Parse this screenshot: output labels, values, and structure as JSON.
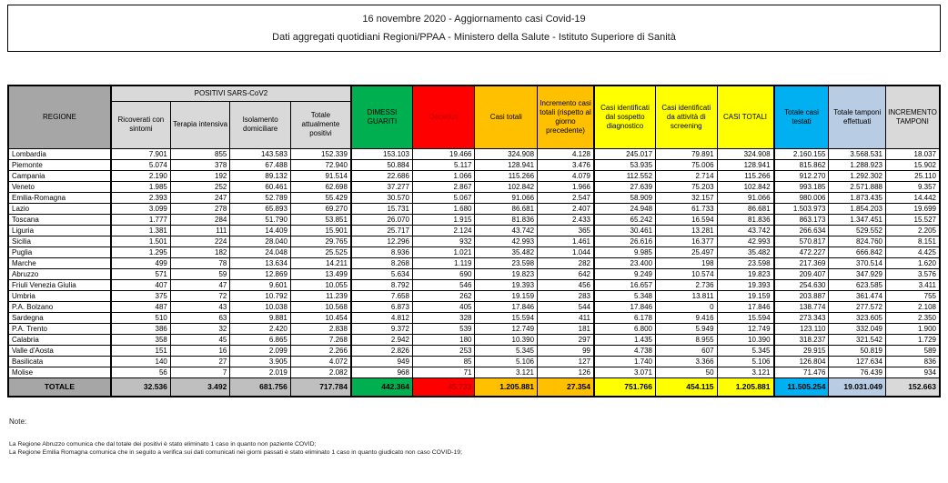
{
  "chart_data": {
    "type": "table",
    "title": "16 novembre 2020 - Aggiornamento casi Covid-19",
    "subtitle": "Dati aggregati quotidiani Regioni/PPAA - Ministero della Salute - Istituto Superiore di Sanità",
    "group_header": "POSITIVI SARS-CoV2",
    "columns": [
      "REGIONE",
      "Ricoverati con sintomi",
      "Terapia intensiva",
      "Isolamento domiciliare",
      "Totale attualmente positivi",
      "DIMESSI GUARITI",
      "Deceduti",
      "Casi totali",
      "Incremento casi totali (rispetto al giorno precedente)",
      "Casi identificati dal sospetto diagnostico",
      "Casi identificati da attività di screening",
      "CASI TOTALI",
      "Totale casi testati",
      "Totale tamponi effettuati",
      "INCREMENTO TAMPONI"
    ],
    "rows": [
      [
        "Lombardia",
        "7.901",
        "855",
        "143.583",
        "152.339",
        "153.103",
        "19.466",
        "324.908",
        "4.128",
        "245.017",
        "79.891",
        "324.908",
        "2.160.155",
        "3.568.531",
        "18.037"
      ],
      [
        "Piemonte",
        "5.074",
        "378",
        "67.488",
        "72.940",
        "50.884",
        "5.117",
        "128.941",
        "3.476",
        "53.935",
        "75.006",
        "128.941",
        "815.862",
        "1.288.923",
        "15.902"
      ],
      [
        "Campania",
        "2.190",
        "192",
        "89.132",
        "91.514",
        "22.686",
        "1.066",
        "115.266",
        "4.079",
        "112.552",
        "2.714",
        "115.266",
        "912.270",
        "1.292.302",
        "25.110"
      ],
      [
        "Veneto",
        "1.985",
        "252",
        "60.461",
        "62.698",
        "37.277",
        "2.867",
        "102.842",
        "1.966",
        "27.639",
        "75.203",
        "102.842",
        "993.185",
        "2.571.888",
        "9.357"
      ],
      [
        "Emilia-Romagna",
        "2.393",
        "247",
        "52.789",
        "55.429",
        "30.570",
        "5.067",
        "91.066",
        "2.547",
        "58.909",
        "32.157",
        "91.066",
        "980.006",
        "1.873.435",
        "14.442"
      ],
      [
        "Lazio",
        "3.099",
        "278",
        "65.893",
        "69.270",
        "15.731",
        "1.680",
        "86.681",
        "2.407",
        "24.948",
        "61.733",
        "86.681",
        "1.503.973",
        "1.854.203",
        "19.699"
      ],
      [
        "Toscana",
        "1.777",
        "284",
        "51.790",
        "53.851",
        "26.070",
        "1.915",
        "81.836",
        "2.433",
        "65.242",
        "16.594",
        "81.836",
        "863.173",
        "1.347.451",
        "15.527"
      ],
      [
        "Liguria",
        "1.381",
        "111",
        "14.409",
        "15.901",
        "25.717",
        "2.124",
        "43.742",
        "365",
        "30.461",
        "13.281",
        "43.742",
        "266.634",
        "529.552",
        "2.205"
      ],
      [
        "Sicilia",
        "1.501",
        "224",
        "28.040",
        "29.765",
        "12.296",
        "932",
        "42.993",
        "1.461",
        "26.616",
        "16.377",
        "42.993",
        "570.817",
        "824.760",
        "8.151"
      ],
      [
        "Puglia",
        "1.295",
        "182",
        "24.048",
        "25.525",
        "8.936",
        "1.021",
        "35.482",
        "1.044",
        "9.985",
        "25.497",
        "35.482",
        "472.227",
        "666.842",
        "4.425"
      ],
      [
        "Marche",
        "499",
        "78",
        "13.634",
        "14.211",
        "8.268",
        "1.119",
        "23.598",
        "282",
        "23.400",
        "198",
        "23.598",
        "217.369",
        "370.514",
        "1.620"
      ],
      [
        "Abruzzo",
        "571",
        "59",
        "12.869",
        "13.499",
        "5.634",
        "690",
        "19.823",
        "642",
        "9.249",
        "10.574",
        "19.823",
        "209.407",
        "347.929",
        "3.576"
      ],
      [
        "Friuli Venezia Giulia",
        "407",
        "47",
        "9.601",
        "10.055",
        "8.792",
        "546",
        "19.393",
        "456",
        "16.657",
        "2.736",
        "19.393",
        "254.630",
        "623.585",
        "3.411"
      ],
      [
        "Umbria",
        "375",
        "72",
        "10.792",
        "11.239",
        "7.658",
        "262",
        "19.159",
        "283",
        "5.348",
        "13.811",
        "19.159",
        "203.887",
        "361.474",
        "755"
      ],
      [
        "P.A. Bolzano",
        "487",
        "43",
        "10.038",
        "10.568",
        "6.873",
        "405",
        "17.846",
        "544",
        "17.846",
        "0",
        "17.846",
        "138.774",
        "277.572",
        "2.108"
      ],
      [
        "Sardegna",
        "510",
        "63",
        "9.881",
        "10.454",
        "4.812",
        "328",
        "15.594",
        "411",
        "6.178",
        "9.416",
        "15.594",
        "273.343",
        "323.605",
        "2.350"
      ],
      [
        "P.A. Trento",
        "386",
        "32",
        "2.420",
        "2.838",
        "9.372",
        "539",
        "12.749",
        "181",
        "6.800",
        "5.949",
        "12.749",
        "123.110",
        "332.049",
        "1.900"
      ],
      [
        "Calabria",
        "358",
        "45",
        "6.865",
        "7.268",
        "2.942",
        "180",
        "10.390",
        "297",
        "1.435",
        "8.955",
        "10.390",
        "318.237",
        "321.542",
        "1.729"
      ],
      [
        "Valle d'Aosta",
        "151",
        "16",
        "2.099",
        "2.266",
        "2.826",
        "253",
        "5.345",
        "99",
        "4.738",
        "607",
        "5.345",
        "29.915",
        "50.819",
        "589"
      ],
      [
        "Basilicata",
        "140",
        "27",
        "3.905",
        "4.072",
        "949",
        "85",
        "5.106",
        "127",
        "1.740",
        "3.366",
        "5.106",
        "126.804",
        "127.634",
        "836"
      ],
      [
        "Molise",
        "56",
        "7",
        "2.019",
        "2.082",
        "968",
        "71",
        "3.121",
        "126",
        "3.071",
        "50",
        "3.121",
        "71.476",
        "76.439",
        "934"
      ]
    ],
    "totals": [
      "TOTALE",
      "32.536",
      "3.492",
      "681.756",
      "717.784",
      "442.364",
      "45.733",
      "1.205.881",
      "27.354",
      "751.766",
      "454.115",
      "1.205.881",
      "11.505.254",
      "19.031.049",
      "152.663"
    ],
    "notes_heading": "Note:",
    "notes": [
      "La Regione Abruzzo comunica che dal totale dei positivi è stato eliminato 1 caso in quanto non paziente COVID;",
      "La Regione Emilia Romagna comunica che in seguito a verifica sui dati comunicati nei giorni passati è stato eliminato 1 caso in quanto giudicato non caso COVID-19;"
    ]
  },
  "colors": {
    "green": "#00B050",
    "red": "#FF0000",
    "dark_red_text": "#C00000",
    "orange": "#FFC000",
    "yellow": "#FFFF00",
    "blue": "#00B0F0",
    "light_blue": "#B8CCE4",
    "light_gray": "#D9D9D9",
    "medium_gray": "#A6A6A6",
    "totale_gray": "#BFBFBF"
  }
}
